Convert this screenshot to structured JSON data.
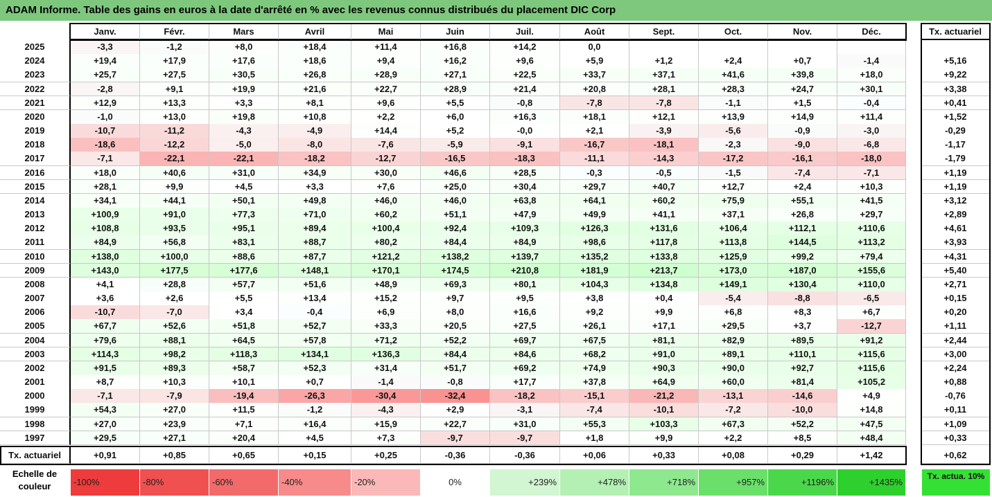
{
  "title": "ADAM Informe. Table des gains en euros à la date d'arrêté en % avec les revenus connus distribués du placement DIC Corp",
  "chart_data": {
    "type": "table",
    "months": [
      "Janv.",
      "Févr.",
      "Mars",
      "Avril",
      "Mai",
      "Juin",
      "Juil.",
      "Août",
      "Sept.",
      "Oct.",
      "Nov.",
      "Déc."
    ],
    "last_col_header": "Tx. actuariel",
    "rows": [
      {
        "year": "2025",
        "v": [
          "-3,3",
          "-1,2",
          "+8,0",
          "+18,4",
          "+11,4",
          "+16,8",
          "+14,2",
          "0,0",
          "",
          "",
          "",
          ""
        ],
        "tx": ""
      },
      {
        "year": "2024",
        "v": [
          "+19,4",
          "+17,9",
          "+17,6",
          "+18,6",
          "+9,4",
          "+16,2",
          "+9,6",
          "+5,9",
          "+1,2",
          "+2,4",
          "+0,7",
          "-1,4"
        ],
        "tx": "+5,16"
      },
      {
        "year": "2023",
        "v": [
          "+25,7",
          "+27,5",
          "+30,5",
          "+26,8",
          "+28,9",
          "+27,1",
          "+22,5",
          "+33,7",
          "+37,1",
          "+41,6",
          "+39,8",
          "+18,0"
        ],
        "tx": "+9,22"
      },
      {
        "year": "2022",
        "v": [
          "-2,8",
          "+9,1",
          "+19,9",
          "+21,6",
          "+22,7",
          "+28,9",
          "+21,4",
          "+20,8",
          "+28,1",
          "+28,3",
          "+24,7",
          "+30,1"
        ],
        "tx": "+3,38"
      },
      {
        "year": "2021",
        "v": [
          "+12,9",
          "+13,3",
          "+3,3",
          "+8,1",
          "+9,6",
          "+5,5",
          "-0,8",
          "-7,8",
          "-7,8",
          "-1,1",
          "+1,5",
          "-0,4"
        ],
        "tx": "+0,41"
      },
      {
        "year": "2020",
        "v": [
          "-1,0",
          "+13,0",
          "+19,8",
          "+10,8",
          "+2,2",
          "+6,0",
          "+16,3",
          "+18,1",
          "+12,1",
          "+13,9",
          "+14,9",
          "+11,4"
        ],
        "tx": "+1,52"
      },
      {
        "year": "2019",
        "v": [
          "-10,7",
          "-11,2",
          "-4,3",
          "-4,9",
          "+14,4",
          "+5,2",
          "-0,0",
          "+2,1",
          "-3,9",
          "-5,6",
          "-0,9",
          "-3,0"
        ],
        "tx": "-0,29"
      },
      {
        "year": "2018",
        "v": [
          "-18,6",
          "-12,2",
          "-5,0",
          "-8,0",
          "-7,6",
          "-5,9",
          "-9,1",
          "-16,7",
          "-18,1",
          "-2,3",
          "-9,0",
          "-6,8"
        ],
        "tx": "-1,17"
      },
      {
        "year": "2017",
        "v": [
          "-7,1",
          "-22,1",
          "-22,1",
          "-18,2",
          "-12,7",
          "-16,5",
          "-18,3",
          "-11,1",
          "-14,3",
          "-17,2",
          "-16,1",
          "-18,0"
        ],
        "tx": "-1,79"
      },
      {
        "year": "2016",
        "v": [
          "+18,0",
          "+40,6",
          "+31,0",
          "+34,9",
          "+30,0",
          "+46,6",
          "+28,5",
          "-0,3",
          "-0,5",
          "-1,5",
          "-7,4",
          "-7,1"
        ],
        "tx": "+1,19"
      },
      {
        "year": "2015",
        "v": [
          "+28,1",
          "+9,9",
          "+4,5",
          "+3,3",
          "+7,6",
          "+25,0",
          "+30,4",
          "+29,7",
          "+40,7",
          "+12,7",
          "+2,4",
          "+10,3"
        ],
        "tx": "+1,19"
      },
      {
        "year": "2014",
        "v": [
          "+34,1",
          "+44,1",
          "+50,1",
          "+49,8",
          "+46,0",
          "+46,0",
          "+63,8",
          "+64,1",
          "+60,2",
          "+75,9",
          "+55,1",
          "+41,5"
        ],
        "tx": "+3,12"
      },
      {
        "year": "2013",
        "v": [
          "+100,9",
          "+91,0",
          "+77,3",
          "+71,0",
          "+60,2",
          "+51,1",
          "+47,9",
          "+49,9",
          "+41,1",
          "+37,1",
          "+26,8",
          "+29,7"
        ],
        "tx": "+2,89"
      },
      {
        "year": "2012",
        "v": [
          "+108,8",
          "+93,5",
          "+95,1",
          "+89,4",
          "+100,4",
          "+92,4",
          "+109,3",
          "+126,3",
          "+131,6",
          "+106,4",
          "+112,1",
          "+110,6"
        ],
        "tx": "+4,61"
      },
      {
        "year": "2011",
        "v": [
          "+84,9",
          "+56,8",
          "+83,1",
          "+88,7",
          "+80,2",
          "+84,4",
          "+84,9",
          "+98,6",
          "+117,8",
          "+113,8",
          "+144,5",
          "+113,2"
        ],
        "tx": "+3,93"
      },
      {
        "year": "2010",
        "v": [
          "+138,0",
          "+100,0",
          "+88,6",
          "+87,7",
          "+121,2",
          "+138,2",
          "+139,7",
          "+135,2",
          "+133,8",
          "+125,9",
          "+99,2",
          "+79,4"
        ],
        "tx": "+4,31"
      },
      {
        "year": "2009",
        "v": [
          "+143,0",
          "+177,5",
          "+177,6",
          "+148,1",
          "+170,1",
          "+174,5",
          "+210,8",
          "+181,9",
          "+213,7",
          "+173,0",
          "+187,0",
          "+155,6"
        ],
        "tx": "+5,40"
      },
      {
        "year": "2008",
        "v": [
          "+4,1",
          "+28,8",
          "+57,7",
          "+51,6",
          "+48,9",
          "+69,3",
          "+80,1",
          "+104,3",
          "+134,8",
          "+149,1",
          "+130,4",
          "+110,0"
        ],
        "tx": "+2,71"
      },
      {
        "year": "2007",
        "v": [
          "+3,6",
          "+2,6",
          "+5,5",
          "+13,4",
          "+15,2",
          "+9,7",
          "+9,5",
          "+3,8",
          "+0,4",
          "-5,4",
          "-8,8",
          "-6,5"
        ],
        "tx": "+0,15"
      },
      {
        "year": "2006",
        "v": [
          "-10,7",
          "-7,0",
          "+3,4",
          "-0,4",
          "+6,9",
          "+8,0",
          "+16,6",
          "+9,2",
          "+9,9",
          "+6,8",
          "+8,3",
          "+6,7"
        ],
        "tx": "+0,20"
      },
      {
        "year": "2005",
        "v": [
          "+67,7",
          "+52,6",
          "+51,8",
          "+52,7",
          "+33,3",
          "+20,5",
          "+27,5",
          "+26,1",
          "+17,1",
          "+29,5",
          "+3,7",
          "-12,7"
        ],
        "tx": "+1,11"
      },
      {
        "year": "2004",
        "v": [
          "+79,6",
          "+88,1",
          "+64,5",
          "+57,8",
          "+71,2",
          "+52,2",
          "+69,7",
          "+67,5",
          "+81,1",
          "+82,9",
          "+89,5",
          "+91,2"
        ],
        "tx": "+2,44"
      },
      {
        "year": "2003",
        "v": [
          "+114,3",
          "+98,2",
          "+118,3",
          "+134,1",
          "+136,3",
          "+84,4",
          "+84,6",
          "+68,2",
          "+91,0",
          "+89,1",
          "+110,1",
          "+115,6"
        ],
        "tx": "+3,00"
      },
      {
        "year": "2002",
        "v": [
          "+91,5",
          "+89,3",
          "+58,7",
          "+52,3",
          "+31,4",
          "+51,7",
          "+69,2",
          "+74,9",
          "+90,3",
          "+90,0",
          "+92,7",
          "+115,6"
        ],
        "tx": "+2,24"
      },
      {
        "year": "2001",
        "v": [
          "+8,7",
          "+10,3",
          "+10,1",
          "+0,7",
          "-1,4",
          "-0,8",
          "+17,7",
          "+37,8",
          "+64,9",
          "+60,0",
          "+81,4",
          "+105,2"
        ],
        "tx": "+0,88"
      },
      {
        "year": "2000",
        "v": [
          "-7,1",
          "-7,9",
          "-19,4",
          "-26,3",
          "-30,4",
          "-32,4",
          "-18,2",
          "-15,1",
          "-21,2",
          "-13,1",
          "-14,6",
          "+4,9"
        ],
        "tx": "-0,76"
      },
      {
        "year": "1999",
        "v": [
          "+54,3",
          "+27,0",
          "+11,5",
          "-1,2",
          "-4,3",
          "+2,9",
          "-3,1",
          "-7,4",
          "-10,1",
          "-7,2",
          "-10,0",
          "+14,8"
        ],
        "tx": "+0,11"
      },
      {
        "year": "1998",
        "v": [
          "+27,0",
          "+23,9",
          "+7,1",
          "+16,4",
          "+15,9",
          "+22,7",
          "+31,0",
          "+55,3",
          "+103,3",
          "+67,3",
          "+52,2",
          "+47,5"
        ],
        "tx": "+1,09"
      },
      {
        "year": "1997",
        "v": [
          "+29,5",
          "+27,1",
          "+20,4",
          "+4,5",
          "+7,3",
          "-9,7",
          "-9,7",
          "+1,8",
          "+9,9",
          "+2,2",
          "+8,5",
          "+48,4"
        ],
        "tx": "+0,33"
      }
    ],
    "summary_row": {
      "label": "Tx. actuariel",
      "v": [
        "+0,91",
        "+0,85",
        "+0,65",
        "+0,15",
        "+0,25",
        "-0,36",
        "-0,36",
        "+0,06",
        "+0,33",
        "+0,08",
        "+0,29",
        "+1,42"
      ],
      "tx": "+0,62"
    },
    "legend": {
      "label": "Echelle de couleur",
      "items": [
        {
          "text": "-100%",
          "color": "#ee3b3b",
          "align": "left"
        },
        {
          "text": "-80%",
          "color": "#f05050",
          "align": "left"
        },
        {
          "text": "-60%",
          "color": "#f36a6a",
          "align": "left"
        },
        {
          "text": "-40%",
          "color": "#f78a8a",
          "align": "left"
        },
        {
          "text": "-20%",
          "color": "#fbb8b8",
          "align": "left"
        },
        {
          "text": "0%",
          "color": "#ffffff",
          "align": "center"
        },
        {
          "text": "+239%",
          "color": "#d2f5d2",
          "align": "right"
        },
        {
          "text": "+478%",
          "color": "#b4f0b4",
          "align": "right"
        },
        {
          "text": "+718%",
          "color": "#8ee88e",
          "align": "right"
        },
        {
          "text": "+957%",
          "color": "#6ae06a",
          "align": "right"
        },
        {
          "text": "+1196%",
          "color": "#4ad84a",
          "align": "right"
        },
        {
          "text": "+1435%",
          "color": "#2ed02e",
          "align": "right"
        }
      ],
      "accent_label": "Tx. actua. 10%",
      "accent_color": "#35e035"
    }
  }
}
